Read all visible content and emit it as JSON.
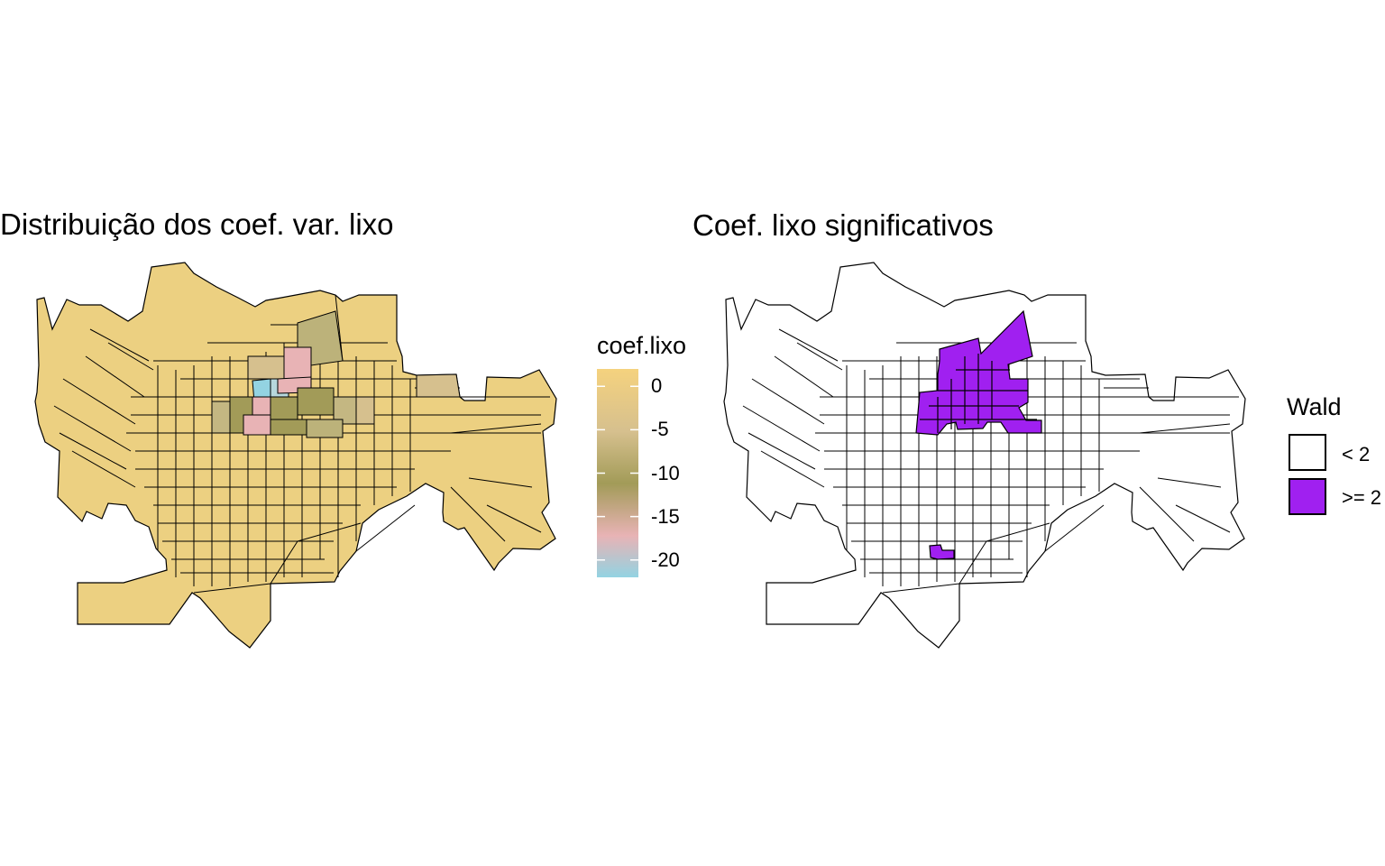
{
  "left_panel": {
    "title": "Distribuição dos coef. var. lixo",
    "legend": {
      "title": "coef.lixo",
      "ticks": [
        {
          "label": "0",
          "value": 0
        },
        {
          "label": "-5",
          "value": -5
        },
        {
          "label": "-10",
          "value": -10
        },
        {
          "label": "-15",
          "value": -15
        },
        {
          "label": "-20",
          "value": -20
        }
      ],
      "range": [
        -22,
        2
      ],
      "gradient_colors": [
        "#f5d27e",
        "#d6c08e",
        "#a29b58",
        "#e8b3b5",
        "#93d3e2"
      ]
    },
    "base_fill": "#ecd081",
    "stroke": "#000000"
  },
  "right_panel": {
    "title": "Coef. lixo significativos",
    "legend": {
      "title": "Wald",
      "items": [
        {
          "label": "< 2",
          "color": "#ffffff"
        },
        {
          "label": ">= 2",
          "color": "#a020f0"
        }
      ]
    },
    "base_fill": "#ffffff",
    "significant_fill": "#a020f0",
    "stroke": "#000000"
  }
}
